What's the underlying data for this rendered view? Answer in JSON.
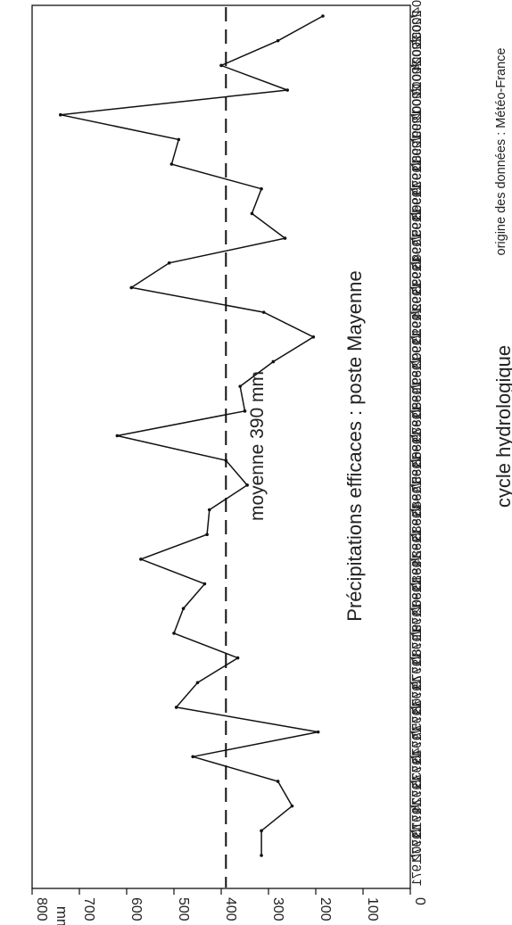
{
  "chart_data": {
    "type": "line",
    "title": "Précipitations efficaces : poste Mayenne",
    "xlabel": "cycle hydrologique",
    "ylabel": "mm",
    "source_note": "origine des données : Météo-France",
    "mean_label": "moyenne 390 mm",
    "mean_value": 390,
    "ylim": [
      0,
      800
    ],
    "yticks": [
      0,
      100,
      200,
      300,
      400,
      500,
      600,
      700,
      800
    ],
    "grid": false,
    "categories": [
      "1970/1971",
      "1971/1972",
      "1972/1973",
      "1973/1974",
      "1974/1975",
      "1975/1976",
      "1976/1977",
      "1977/1978",
      "1978/1979",
      "1979/1980",
      "1980/1981",
      "1981/1982",
      "1982/1983",
      "1983/1984",
      "1984/1985",
      "1985/1986",
      "1986/1987",
      "1987/1988",
      "1988/1989",
      "1989/1990",
      "1990/1991",
      "1991/1992",
      "1992/1993",
      "1993/1994",
      "1994/1995",
      "1995/1996",
      "1996/1997",
      "1997/1998",
      "1998/1999",
      "1999/2000",
      "2000/2001",
      "2001/2002",
      "2002/2003",
      "2003/2004",
      "2004/2005"
    ],
    "series": [
      {
        "values": [
          315,
          315,
          250,
          280,
          460,
          195,
          495,
          450,
          365,
          500,
          480,
          435,
          570,
          430,
          425,
          345,
          390,
          620,
          350,
          360,
          290,
          205,
          310,
          590,
          510,
          265,
          335,
          315,
          505,
          490,
          740,
          260,
          400,
          280,
          185
        ]
      }
    ]
  }
}
